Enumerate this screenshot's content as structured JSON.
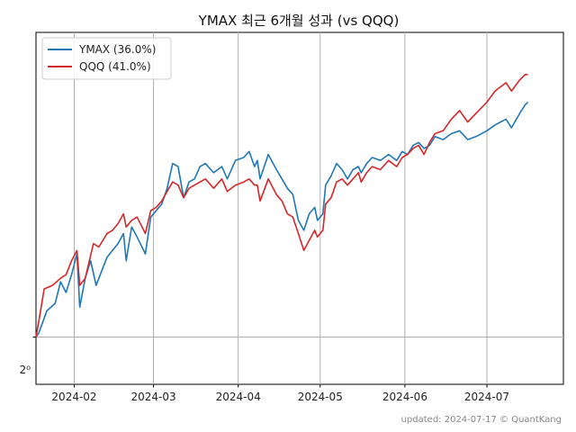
{
  "chart_data": {
    "type": "line",
    "title": "YMAX 최근 6개월 성과 (vs QQQ)",
    "xlabel": "",
    "ylabel": "",
    "y_scale": "log2",
    "y_tick_label": "2⁰",
    "x_tick_labels": [
      "2024-02",
      "2024-03",
      "2024-04",
      "2024-05",
      "2024-06",
      "2024-07"
    ],
    "x_range": [
      "2024-01-18",
      "2024-07-29"
    ],
    "grid": "vertical lines at month ticks, horizontal line at 2⁰",
    "legend_position": "top-left",
    "footer": "updated: 2024-07-17 © QuantKang",
    "series": [
      {
        "name": "YMAX (36.0%)",
        "color": "#1f77b4",
        "points": [
          [
            "2024-01-18",
            1.0
          ],
          [
            "2024-01-19",
            1.005
          ],
          [
            "2024-01-22",
            1.035
          ],
          [
            "2024-01-25",
            1.045
          ],
          [
            "2024-01-27",
            1.075
          ],
          [
            "2024-01-29",
            1.06
          ],
          [
            "2024-01-31",
            1.085
          ],
          [
            "2024-02-02",
            1.115
          ],
          [
            "2024-02-03",
            1.04
          ],
          [
            "2024-02-05",
            1.08
          ],
          [
            "2024-02-07",
            1.105
          ],
          [
            "2024-02-09",
            1.07
          ],
          [
            "2024-02-11",
            1.09
          ],
          [
            "2024-02-13",
            1.11
          ],
          [
            "2024-02-15",
            1.12
          ],
          [
            "2024-02-17",
            1.13
          ],
          [
            "2024-02-19",
            1.145
          ],
          [
            "2024-02-20",
            1.105
          ],
          [
            "2024-02-22",
            1.155
          ],
          [
            "2024-02-24",
            1.14
          ],
          [
            "2024-02-27",
            1.115
          ],
          [
            "2024-02-29",
            1.17
          ],
          [
            "2024-03-02",
            1.18
          ],
          [
            "2024-03-04",
            1.19
          ],
          [
            "2024-03-06",
            1.215
          ],
          [
            "2024-03-08",
            1.255
          ],
          [
            "2024-03-10",
            1.25
          ],
          [
            "2024-03-12",
            1.2
          ],
          [
            "2024-03-14",
            1.225
          ],
          [
            "2024-03-16",
            1.23
          ],
          [
            "2024-03-18",
            1.25
          ],
          [
            "2024-03-20",
            1.255
          ],
          [
            "2024-03-23",
            1.24
          ],
          [
            "2024-03-26",
            1.25
          ],
          [
            "2024-03-28",
            1.23
          ],
          [
            "2024-03-31",
            1.26
          ],
          [
            "2024-04-03",
            1.265
          ],
          [
            "2024-04-05",
            1.275
          ],
          [
            "2024-04-07",
            1.25
          ],
          [
            "2024-04-08",
            1.26
          ],
          [
            "2024-04-09",
            1.23
          ],
          [
            "2024-04-12",
            1.27
          ],
          [
            "2024-04-15",
            1.245
          ],
          [
            "2024-04-17",
            1.23
          ],
          [
            "2024-04-19",
            1.215
          ],
          [
            "2024-04-21",
            1.205
          ],
          [
            "2024-04-23",
            1.165
          ],
          [
            "2024-04-25",
            1.15
          ],
          [
            "2024-04-27",
            1.175
          ],
          [
            "2024-04-29",
            1.185
          ],
          [
            "2024-04-30",
            1.165
          ],
          [
            "2024-05-02",
            1.175
          ],
          [
            "2024-05-03",
            1.22
          ],
          [
            "2024-05-05",
            1.235
          ],
          [
            "2024-05-07",
            1.255
          ],
          [
            "2024-05-09",
            1.245
          ],
          [
            "2024-05-11",
            1.23
          ],
          [
            "2024-05-13",
            1.245
          ],
          [
            "2024-05-15",
            1.25
          ],
          [
            "2024-05-16",
            1.24
          ],
          [
            "2024-05-18",
            1.255
          ],
          [
            "2024-05-20",
            1.265
          ],
          [
            "2024-05-23",
            1.26
          ],
          [
            "2024-05-26",
            1.27
          ],
          [
            "2024-05-29",
            1.26
          ],
          [
            "2024-05-31",
            1.275
          ],
          [
            "2024-06-02",
            1.27
          ],
          [
            "2024-06-04",
            1.285
          ],
          [
            "2024-06-06",
            1.29
          ],
          [
            "2024-06-08",
            1.28
          ],
          [
            "2024-06-10",
            1.285
          ],
          [
            "2024-06-12",
            1.3
          ],
          [
            "2024-06-15",
            1.295
          ],
          [
            "2024-06-18",
            1.305
          ],
          [
            "2024-06-21",
            1.31
          ],
          [
            "2024-06-24",
            1.295
          ],
          [
            "2024-06-27",
            1.3
          ],
          [
            "2024-07-01",
            1.31
          ],
          [
            "2024-07-04",
            1.32
          ],
          [
            "2024-07-08",
            1.33
          ],
          [
            "2024-07-10",
            1.315
          ],
          [
            "2024-07-13",
            1.34
          ],
          [
            "2024-07-15",
            1.355
          ],
          [
            "2024-07-16",
            1.36
          ]
        ]
      },
      {
        "name": "QQQ (41.0%)",
        "color": "#d62728",
        "points": [
          [
            "2024-01-18",
            1.0
          ],
          [
            "2024-01-19",
            1.02
          ],
          [
            "2024-01-21",
            1.065
          ],
          [
            "2024-01-24",
            1.07
          ],
          [
            "2024-01-27",
            1.08
          ],
          [
            "2024-01-29",
            1.085
          ],
          [
            "2024-01-31",
            1.105
          ],
          [
            "2024-02-02",
            1.12
          ],
          [
            "2024-02-03",
            1.07
          ],
          [
            "2024-02-05",
            1.08
          ],
          [
            "2024-02-08",
            1.13
          ],
          [
            "2024-02-10",
            1.125
          ],
          [
            "2024-02-13",
            1.145
          ],
          [
            "2024-02-15",
            1.15
          ],
          [
            "2024-02-17",
            1.16
          ],
          [
            "2024-02-19",
            1.175
          ],
          [
            "2024-02-20",
            1.155
          ],
          [
            "2024-02-22",
            1.165
          ],
          [
            "2024-02-24",
            1.17
          ],
          [
            "2024-02-27",
            1.145
          ],
          [
            "2024-02-29",
            1.18
          ],
          [
            "2024-03-02",
            1.185
          ],
          [
            "2024-03-04",
            1.195
          ],
          [
            "2024-03-06",
            1.21
          ],
          [
            "2024-03-08",
            1.225
          ],
          [
            "2024-03-10",
            1.22
          ],
          [
            "2024-03-12",
            1.2
          ],
          [
            "2024-03-14",
            1.215
          ],
          [
            "2024-03-16",
            1.22
          ],
          [
            "2024-03-18",
            1.225
          ],
          [
            "2024-03-20",
            1.23
          ],
          [
            "2024-03-23",
            1.215
          ],
          [
            "2024-03-26",
            1.23
          ],
          [
            "2024-03-28",
            1.21
          ],
          [
            "2024-03-31",
            1.22
          ],
          [
            "2024-04-03",
            1.225
          ],
          [
            "2024-04-05",
            1.23
          ],
          [
            "2024-04-07",
            1.22
          ],
          [
            "2024-04-08",
            1.22
          ],
          [
            "2024-04-09",
            1.195
          ],
          [
            "2024-04-12",
            1.23
          ],
          [
            "2024-04-15",
            1.205
          ],
          [
            "2024-04-17",
            1.195
          ],
          [
            "2024-04-19",
            1.175
          ],
          [
            "2024-04-21",
            1.17
          ],
          [
            "2024-04-23",
            1.145
          ],
          [
            "2024-04-25",
            1.12
          ],
          [
            "2024-04-27",
            1.135
          ],
          [
            "2024-04-29",
            1.15
          ],
          [
            "2024-04-30",
            1.14
          ],
          [
            "2024-05-02",
            1.15
          ],
          [
            "2024-05-03",
            1.19
          ],
          [
            "2024-05-05",
            1.2
          ],
          [
            "2024-05-07",
            1.225
          ],
          [
            "2024-05-09",
            1.23
          ],
          [
            "2024-05-11",
            1.22
          ],
          [
            "2024-05-13",
            1.23
          ],
          [
            "2024-05-15",
            1.24
          ],
          [
            "2024-05-16",
            1.225
          ],
          [
            "2024-05-18",
            1.24
          ],
          [
            "2024-05-20",
            1.25
          ],
          [
            "2024-05-23",
            1.245
          ],
          [
            "2024-05-26",
            1.26
          ],
          [
            "2024-05-29",
            1.25
          ],
          [
            "2024-05-31",
            1.265
          ],
          [
            "2024-06-02",
            1.27
          ],
          [
            "2024-06-04",
            1.28
          ],
          [
            "2024-06-06",
            1.285
          ],
          [
            "2024-06-08",
            1.27
          ],
          [
            "2024-06-10",
            1.29
          ],
          [
            "2024-06-12",
            1.305
          ],
          [
            "2024-06-15",
            1.31
          ],
          [
            "2024-06-18",
            1.33
          ],
          [
            "2024-06-21",
            1.345
          ],
          [
            "2024-06-24",
            1.325
          ],
          [
            "2024-06-27",
            1.34
          ],
          [
            "2024-07-01",
            1.36
          ],
          [
            "2024-07-04",
            1.38
          ],
          [
            "2024-07-08",
            1.395
          ],
          [
            "2024-07-10",
            1.38
          ],
          [
            "2024-07-13",
            1.4
          ],
          [
            "2024-07-15",
            1.41
          ],
          [
            "2024-07-16",
            1.41
          ]
        ]
      }
    ]
  }
}
